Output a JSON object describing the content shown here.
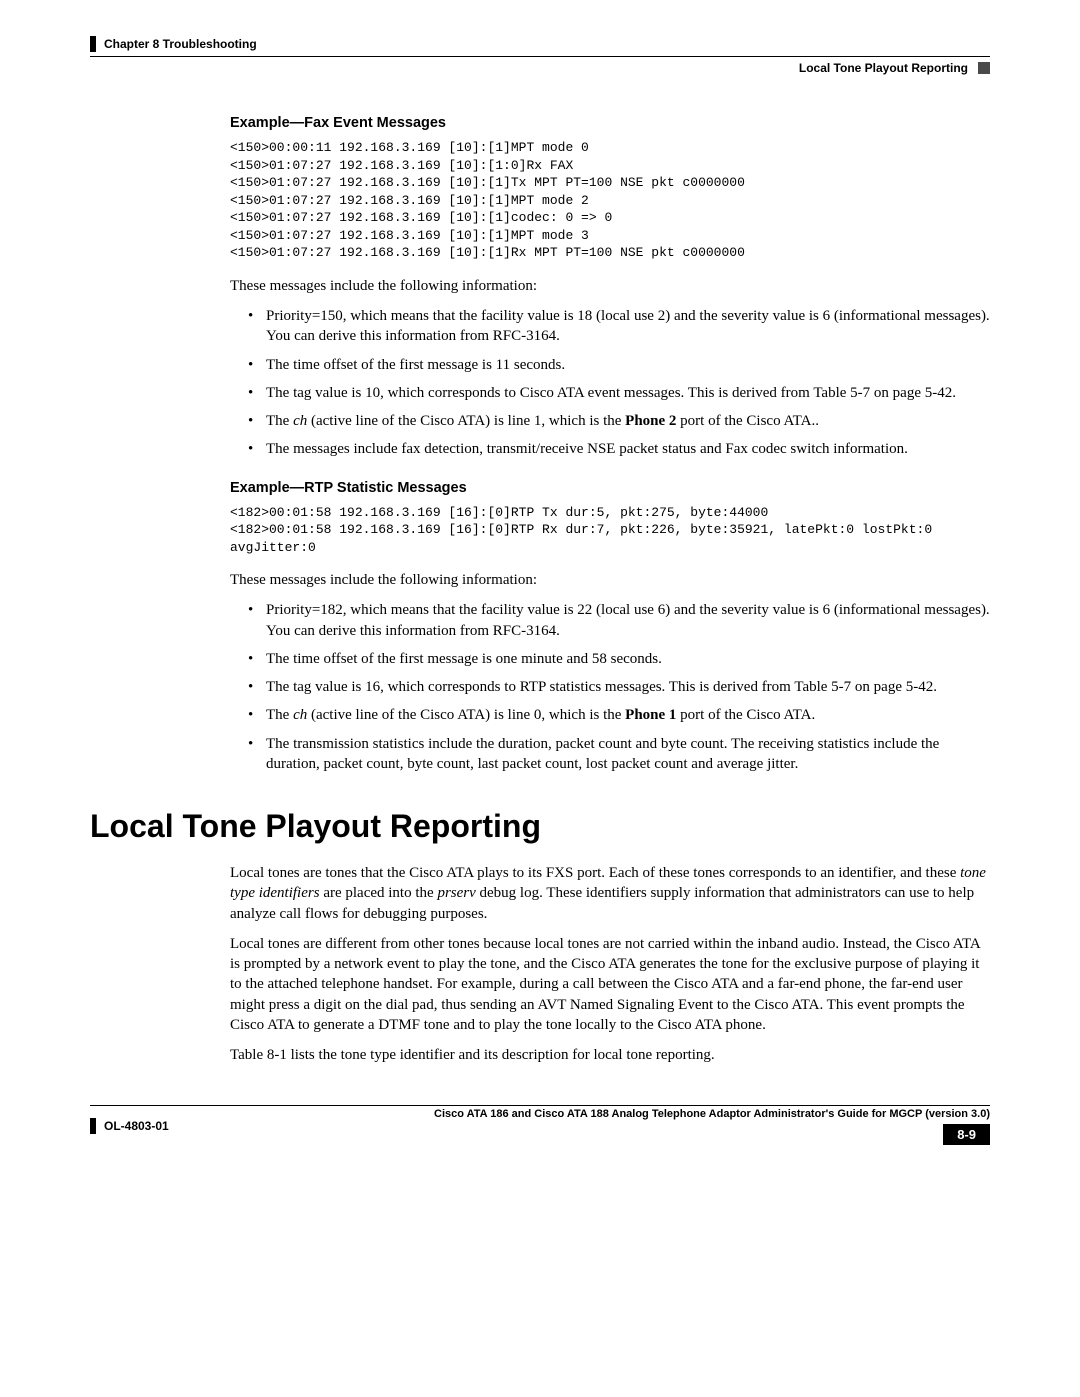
{
  "header": {
    "chapter": "Chapter 8    Troubleshooting",
    "section": "Local Tone Playout Reporting"
  },
  "section1": {
    "title": "Example—Fax Event Messages",
    "code": "<150>00:00:11 192.168.3.169 [10]:[1]MPT mode 0\n<150>01:07:27 192.168.3.169 [10]:[1:0]Rx FAX\n<150>01:07:27 192.168.3.169 [10]:[1]Tx MPT PT=100 NSE pkt c0000000\n<150>01:07:27 192.168.3.169 [10]:[1]MPT mode 2\n<150>01:07:27 192.168.3.169 [10]:[1]codec: 0 => 0\n<150>01:07:27 192.168.3.169 [10]:[1]MPT mode 3\n<150>01:07:27 192.168.3.169 [10]:[1]Rx MPT PT=100 NSE pkt c0000000",
    "intro": "These messages include the following information:",
    "bullets": {
      "b1": "Priority=150, which means that the facility value is 18 (local use 2) and the severity value is 6 (informational messages). You can derive this information from RFC-3164.",
      "b2": "The time offset of the first message is 11 seconds.",
      "b3": "The tag value is 10, which corresponds to Cisco ATA event messages. This is derived from Table 5-7 on page 5-42.",
      "b4_pre": "The ",
      "b4_em": "ch",
      "b4_mid": " (active line of the Cisco ATA) is line 1, which is the ",
      "b4_bold": "Phone 2",
      "b4_post": " port of the Cisco ATA..",
      "b5": "The messages include fax detection, transmit/receive NSE packet status and Fax codec switch information."
    }
  },
  "section2": {
    "title": "Example—RTP Statistic Messages",
    "code": "<182>00:01:58 192.168.3.169 [16]:[0]RTP Tx dur:5, pkt:275, byte:44000\n<182>00:01:58 192.168.3.169 [16]:[0]RTP Rx dur:7, pkt:226, byte:35921, latePkt:0 lostPkt:0\navgJitter:0",
    "intro": "These messages include the following information:",
    "bullets": {
      "b1": "Priority=182, which means that the facility value is 22 (local use 6) and the severity value is 6 (informational messages). You can derive this information from RFC-3164.",
      "b2": "The time offset of the first message is one minute and 58 seconds.",
      "b3": "The tag value is 16, which corresponds to RTP statistics messages. This is derived from Table 5-7 on page 5-42.",
      "b4_pre": "The ",
      "b4_em": "ch",
      "b4_mid": " (active line of the Cisco ATA) is line 0, which is the ",
      "b4_bold": "Phone 1",
      "b4_post": " port of the Cisco ATA.",
      "b5": "The transmission statistics include the duration, packet count and byte count. The receiving statistics include the duration, packet count, byte count, last packet count, lost packet count and average jitter."
    }
  },
  "main": {
    "heading": "Local Tone Playout Reporting",
    "p1_a": "Local tones are tones that the Cisco ATA plays to its FXS port. Each of these tones corresponds to an identifier, and these ",
    "p1_em1": "tone type identifiers",
    "p1_b": " are placed into the ",
    "p1_em2": "prserv",
    "p1_c": " debug log. These identifiers supply information that administrators can use to help analyze call flows for debugging purposes.",
    "p2": "Local tones are different from other tones because local tones are not carried within the inband audio. Instead, the Cisco ATA is prompted by a network event to play the tone, and the Cisco ATA generates the tone for the exclusive purpose of playing it to the attached telephone handset. For example, during a call between the Cisco ATA and a far-end phone, the far-end user might press a digit on the dial pad, thus sending an AVT Named Signaling Event to the Cisco ATA. This event prompts the Cisco ATA to generate a DTMF tone and to play the tone locally to the Cisco ATA phone.",
    "p3": "Table 8-1 lists the tone type identifier and its description for local tone reporting."
  },
  "footer": {
    "guide": "Cisco ATA 186 and Cisco ATA 188 Analog Telephone Adaptor Administrator's Guide for MGCP (version 3.0)",
    "doc": "OL-4803-01",
    "page": "8-9"
  }
}
